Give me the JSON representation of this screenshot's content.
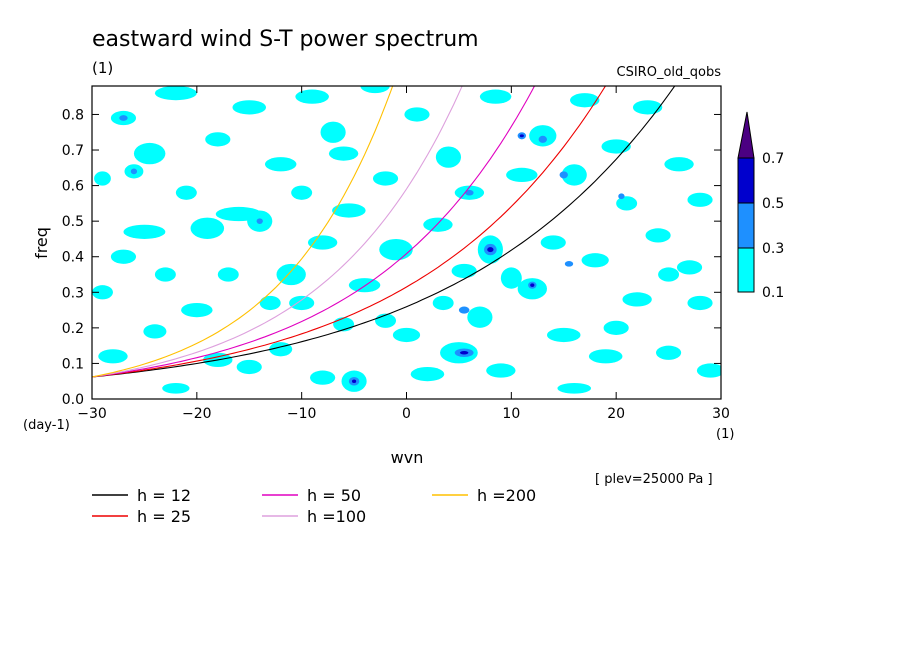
{
  "chart_data": {
    "type": "heatmap",
    "title": "eastward wind S-T power spectrum",
    "subtitle_left": "(1)",
    "subtitle_right": "CSIRO_old_qobs",
    "xlabel": "wvn",
    "ylabel": "freq",
    "x_unit": "(1)",
    "y_unit": "(day-1)",
    "annotation": "[ plev=25000 Pa ]",
    "xlim": [
      -30,
      30
    ],
    "ylim": [
      0,
      0.88
    ],
    "x_ticks": [
      -30,
      -20,
      -10,
      0,
      10,
      20,
      30
    ],
    "y_ticks": [
      0.0,
      0.1,
      0.2,
      0.3,
      0.4,
      0.5,
      0.6,
      0.7,
      0.8
    ],
    "y_tick_labels": [
      "0.0",
      "0.1",
      "0.2",
      "0.3",
      "0.4",
      "0.5",
      "0.6",
      "0.7",
      "0.8"
    ],
    "colorbar": {
      "levels": [
        0.1,
        0.3,
        0.5,
        0.7
      ],
      "labels": [
        "0.1",
        "0.3",
        "0.5",
        "0.7"
      ],
      "colors": [
        "#00ffff",
        "#1e90ff",
        "#0000cd",
        "#4b0082"
      ]
    },
    "series": [
      {
        "name": "h = 12",
        "color": "#000000",
        "h": 12
      },
      {
        "name": "h = 25",
        "color": "#ee0000",
        "h": 25
      },
      {
        "name": "h = 50",
        "color": "#e000c0",
        "h": 50
      },
      {
        "name": "h =100",
        "color": "#dda0dd",
        "h": 100
      },
      {
        "name": "h =200",
        "color": "#ffc000",
        "h": 200
      }
    ],
    "level1_blobs": [
      [
        -29,
        0.62,
        0.8,
        0.02
      ],
      [
        -27,
        0.79,
        1.2,
        0.02
      ],
      [
        -26,
        0.64,
        0.9,
        0.02
      ],
      [
        -25,
        0.47,
        2.0,
        0.02
      ],
      [
        -24.5,
        0.69,
        1.5,
        0.03
      ],
      [
        -23,
        0.35,
        1.0,
        0.02
      ],
      [
        -22,
        0.86,
        2.0,
        0.02
      ],
      [
        -21,
        0.58,
        1.0,
        0.02
      ],
      [
        -20,
        0.25,
        1.5,
        0.02
      ],
      [
        -19,
        0.48,
        1.6,
        0.03
      ],
      [
        -18,
        0.73,
        1.2,
        0.02
      ],
      [
        -17,
        0.35,
        1.0,
        0.02
      ],
      [
        -16,
        0.52,
        2.2,
        0.02
      ],
      [
        -15,
        0.82,
        1.6,
        0.02
      ],
      [
        -14,
        0.5,
        1.2,
        0.03
      ],
      [
        -13,
        0.27,
        1.0,
        0.02
      ],
      [
        -12,
        0.66,
        1.5,
        0.02
      ],
      [
        -11,
        0.35,
        1.4,
        0.03
      ],
      [
        -10,
        0.58,
        1.0,
        0.02
      ],
      [
        -9,
        0.85,
        1.6,
        0.02
      ],
      [
        -8,
        0.44,
        1.4,
        0.02
      ],
      [
        -7,
        0.75,
        1.2,
        0.03
      ],
      [
        -6,
        0.21,
        1.0,
        0.02
      ],
      [
        -5.5,
        0.53,
        1.6,
        0.02
      ],
      [
        -5,
        0.05,
        1.2,
        0.03
      ],
      [
        -4,
        0.32,
        1.5,
        0.02
      ],
      [
        -3,
        0.88,
        1.4,
        0.02
      ],
      [
        -2,
        0.62,
        1.2,
        0.02
      ],
      [
        -1,
        0.42,
        1.6,
        0.03
      ],
      [
        0,
        0.18,
        1.3,
        0.02
      ],
      [
        1,
        0.8,
        1.2,
        0.02
      ],
      [
        2,
        0.07,
        1.6,
        0.02
      ],
      [
        3,
        0.49,
        1.4,
        0.02
      ],
      [
        3.5,
        0.27,
        1.0,
        0.02
      ],
      [
        4,
        0.68,
        1.2,
        0.03
      ],
      [
        5,
        0.13,
        1.8,
        0.03
      ],
      [
        5.5,
        0.36,
        1.2,
        0.02
      ],
      [
        6,
        0.58,
        1.4,
        0.02
      ],
      [
        7,
        0.23,
        1.2,
        0.03
      ],
      [
        8,
        0.42,
        1.2,
        0.04
      ],
      [
        8.5,
        0.85,
        1.5,
        0.02
      ],
      [
        9,
        0.08,
        1.4,
        0.02
      ],
      [
        10,
        0.34,
        1.0,
        0.03
      ],
      [
        11,
        0.63,
        1.5,
        0.02
      ],
      [
        12,
        0.31,
        1.4,
        0.03
      ],
      [
        13,
        0.74,
        1.3,
        0.03
      ],
      [
        14,
        0.44,
        1.2,
        0.02
      ],
      [
        15,
        0.18,
        1.6,
        0.02
      ],
      [
        16,
        0.63,
        1.2,
        0.03
      ],
      [
        17,
        0.84,
        1.4,
        0.02
      ],
      [
        18,
        0.39,
        1.3,
        0.02
      ],
      [
        19,
        0.12,
        1.6,
        0.02
      ],
      [
        20,
        0.71,
        1.4,
        0.02
      ],
      [
        21,
        0.55,
        1.0,
        0.02
      ],
      [
        22,
        0.28,
        1.4,
        0.02
      ],
      [
        23,
        0.82,
        1.4,
        0.02
      ],
      [
        24,
        0.46,
        1.2,
        0.02
      ],
      [
        25,
        0.13,
        1.2,
        0.02
      ],
      [
        26,
        0.66,
        1.4,
        0.02
      ],
      [
        27,
        0.37,
        1.2,
        0.02
      ],
      [
        28,
        0.56,
        1.2,
        0.02
      ],
      [
        29,
        0.08,
        1.3,
        0.02
      ],
      [
        -28,
        0.12,
        1.4,
        0.02
      ],
      [
        -24,
        0.19,
        1.1,
        0.02
      ],
      [
        -18,
        0.11,
        1.4,
        0.02
      ],
      [
        -12,
        0.14,
        1.1,
        0.02
      ],
      [
        -15,
        0.09,
        1.2,
        0.02
      ],
      [
        -22,
        0.03,
        1.3,
        0.015
      ],
      [
        -8,
        0.06,
        1.2,
        0.02
      ],
      [
        16,
        0.03,
        1.6,
        0.015
      ],
      [
        25,
        0.35,
        1.0,
        0.02
      ],
      [
        -27,
        0.4,
        1.2,
        0.02
      ],
      [
        -2,
        0.22,
        1.0,
        0.02
      ],
      [
        -10,
        0.27,
        1.2,
        0.02
      ],
      [
        20,
        0.2,
        1.2,
        0.02
      ],
      [
        28,
        0.27,
        1.2,
        0.02
      ],
      [
        -6,
        0.69,
        1.4,
        0.02
      ],
      [
        -29,
        0.3,
        1.0,
        0.02
      ]
    ],
    "level2_blobs": [
      [
        -5,
        0.05,
        0.5,
        0.012
      ],
      [
        5.5,
        0.13,
        0.9,
        0.012
      ],
      [
        8,
        0.42,
        0.6,
        0.016
      ],
      [
        11,
        0.74,
        0.4,
        0.01
      ],
      [
        12,
        0.32,
        0.4,
        0.01
      ],
      [
        5.5,
        0.25,
        0.5,
        0.01
      ],
      [
        -14,
        0.5,
        0.3,
        0.008
      ],
      [
        15,
        0.63,
        0.4,
        0.01
      ],
      [
        -26,
        0.64,
        0.3,
        0.008
      ],
      [
        6,
        0.58,
        0.4,
        0.008
      ],
      [
        13,
        0.73,
        0.4,
        0.01
      ],
      [
        -27,
        0.79,
        0.4,
        0.008
      ],
      [
        15.5,
        0.38,
        0.4,
        0.008
      ],
      [
        20.5,
        0.57,
        0.3,
        0.008
      ]
    ],
    "level3_blobs": [
      [
        -5,
        0.05,
        0.2,
        0.005
      ],
      [
        5.5,
        0.13,
        0.4,
        0.005
      ],
      [
        8,
        0.42,
        0.3,
        0.007
      ],
      [
        11,
        0.74,
        0.2,
        0.004
      ],
      [
        12,
        0.32,
        0.2,
        0.005
      ]
    ]
  }
}
